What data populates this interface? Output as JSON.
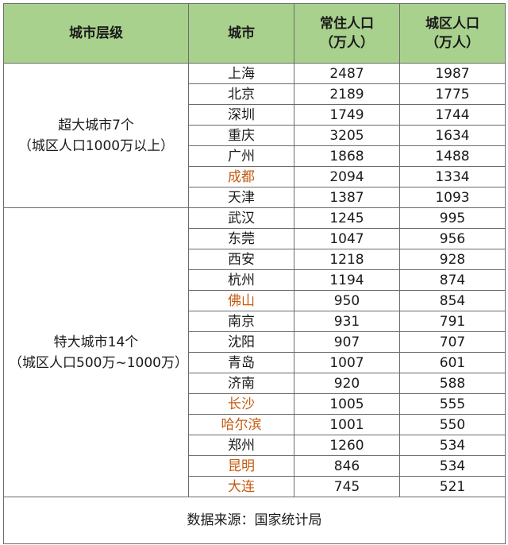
{
  "headers": {
    "tier": "城市层级",
    "city": "城市",
    "resident_pop_line1": "常住人口",
    "resident_pop_line2": "（万人）",
    "urban_pop_line1": "城区人口",
    "urban_pop_line2": "（万人）"
  },
  "colors": {
    "header_bg": "#a9d18e",
    "highlight_city": "#c55a11",
    "border": "#6b6b6b"
  },
  "groups": [
    {
      "tier_line1": "超大城市7个",
      "tier_line2": "（城区人口1000万以上）",
      "rows": [
        {
          "city": "上海",
          "resident": "2487",
          "urban": "1987",
          "highlight": false
        },
        {
          "city": "北京",
          "resident": "2189",
          "urban": "1775",
          "highlight": false
        },
        {
          "city": "深圳",
          "resident": "1749",
          "urban": "1744",
          "highlight": false
        },
        {
          "city": "重庆",
          "resident": "3205",
          "urban": "1634",
          "highlight": false
        },
        {
          "city": "广州",
          "resident": "1868",
          "urban": "1488",
          "highlight": false
        },
        {
          "city": "成都",
          "resident": "2094",
          "urban": "1334",
          "highlight": true
        },
        {
          "city": "天津",
          "resident": "1387",
          "urban": "1093",
          "highlight": false
        }
      ]
    },
    {
      "tier_line1": "特大城市14个",
      "tier_line2": "（城区人口500万~1000万）",
      "rows": [
        {
          "city": "武汉",
          "resident": "1245",
          "urban": "995",
          "highlight": false
        },
        {
          "city": "东莞",
          "resident": "1047",
          "urban": "956",
          "highlight": false
        },
        {
          "city": "西安",
          "resident": "1218",
          "urban": "928",
          "highlight": false
        },
        {
          "city": "杭州",
          "resident": "1194",
          "urban": "874",
          "highlight": false
        },
        {
          "city": "佛山",
          "resident": "950",
          "urban": "854",
          "highlight": true
        },
        {
          "city": "南京",
          "resident": "931",
          "urban": "791",
          "highlight": false
        },
        {
          "city": "沈阳",
          "resident": "907",
          "urban": "707",
          "highlight": false
        },
        {
          "city": "青岛",
          "resident": "1007",
          "urban": "601",
          "highlight": false
        },
        {
          "city": "济南",
          "resident": "920",
          "urban": "588",
          "highlight": false
        },
        {
          "city": "长沙",
          "resident": "1005",
          "urban": "555",
          "highlight": true
        },
        {
          "city": "哈尔滨",
          "resident": "1001",
          "urban": "550",
          "highlight": true
        },
        {
          "city": "郑州",
          "resident": "1260",
          "urban": "534",
          "highlight": false
        },
        {
          "city": "昆明",
          "resident": "846",
          "urban": "534",
          "highlight": true
        },
        {
          "city": "大连",
          "resident": "745",
          "urban": "521",
          "highlight": true
        }
      ]
    }
  ],
  "source_note": "数据来源：国家统计局"
}
